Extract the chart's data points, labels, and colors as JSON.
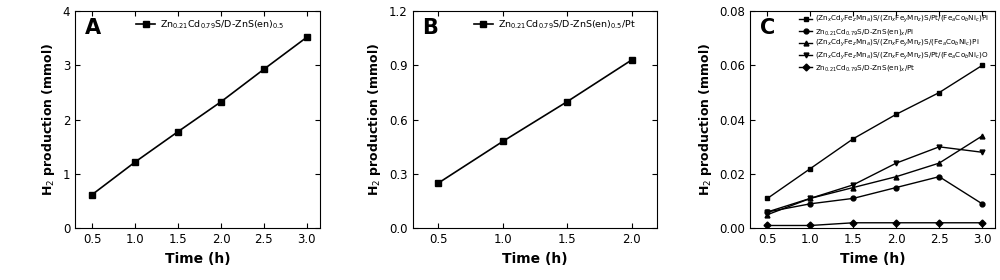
{
  "panel_A": {
    "label": "A",
    "x": [
      0.5,
      1.0,
      1.5,
      2.0,
      2.5,
      3.0
    ],
    "y": [
      0.62,
      1.22,
      1.78,
      2.33,
      2.93,
      3.52
    ],
    "xlim": [
      0.3,
      3.15
    ],
    "ylim": [
      0,
      4.0
    ],
    "yticks": [
      0,
      1,
      2,
      3,
      4
    ],
    "xticks": [
      0.5,
      1.0,
      1.5,
      2.0,
      2.5,
      3.0
    ],
    "legend": "Zn$_{0.21}$Cd$_{0.79}$S/D-ZnS(en)$_{0.5}$",
    "xlabel": "Time (h)",
    "ylabel": "H$_2$ production (mmol)"
  },
  "panel_B": {
    "label": "B",
    "x": [
      0.5,
      1.0,
      1.5,
      2.0
    ],
    "y": [
      0.25,
      0.48,
      0.7,
      0.93
    ],
    "xlim": [
      0.3,
      2.2
    ],
    "ylim": [
      0.0,
      1.2
    ],
    "yticks": [
      0.0,
      0.3,
      0.6,
      0.9,
      1.2
    ],
    "xticks": [
      0.5,
      1.0,
      1.5,
      2.0
    ],
    "legend": "Zn$_{0.21}$Cd$_{0.79}$S/D-ZnS(en)$_{0.5}$/Pt",
    "xlabel": "Time (h)",
    "ylabel": "H$_2$ production (mmol)"
  },
  "panel_C": {
    "label": "C",
    "x": [
      0.5,
      1.0,
      1.5,
      2.0,
      2.5,
      3.0
    ],
    "series": [
      {
        "y": [
          0.011,
          0.022,
          0.033,
          0.042,
          0.05,
          0.06
        ],
        "marker": "s",
        "label": "(Zn$_x$Cd$_y$Fe$_z$Mn$_a$)S/(Zn$_x$Fe$_y$Mn$_z$)S/Pt/(Fe$_a$Co$_b$Ni$_c$)Pi",
        "color": "black"
      },
      {
        "y": [
          0.006,
          0.009,
          0.011,
          0.015,
          0.019,
          0.009
        ],
        "marker": "o",
        "label": "Zn$_{0.21}$Cd$_{0.79}$S/D-ZnS(en)$_x$/Pi",
        "color": "black"
      },
      {
        "y": [
          0.005,
          0.011,
          0.015,
          0.019,
          0.024,
          0.034
        ],
        "marker": "^",
        "label": "(Zn$_x$Cd$_y$Fe$_z$Mn$_a$)S/(Zn$_x$Fe$_y$Mn$_z$)S/(Fe$_a$Co$_b$Ni$_c$)Pi",
        "color": "black"
      },
      {
        "y": [
          0.006,
          0.011,
          0.016,
          0.024,
          0.03,
          0.028
        ],
        "marker": "v",
        "label": "(Zn$_x$Cd$_y$Fe$_z$Mn$_a$)S/(Zn$_x$Fe$_y$Mn$_z$)S/Pt/(Fe$_a$Co$_b$Ni$_c$)O",
        "color": "black"
      },
      {
        "y": [
          0.001,
          0.001,
          0.002,
          0.002,
          0.002,
          0.002
        ],
        "marker": "D",
        "label": "Zn$_{0.21}$Cd$_{0.79}$S/D-ZnS(en)$_x$/Pt",
        "color": "black"
      }
    ],
    "xlim": [
      0.3,
      3.15
    ],
    "ylim": [
      0,
      0.08
    ],
    "yticks": [
      0,
      0.02,
      0.04,
      0.06,
      0.08
    ],
    "xticks": [
      0.5,
      1.0,
      1.5,
      2.0,
      2.5,
      3.0
    ],
    "xlabel": "Time (h)",
    "ylabel": "H$_2$ production (mmol)"
  }
}
